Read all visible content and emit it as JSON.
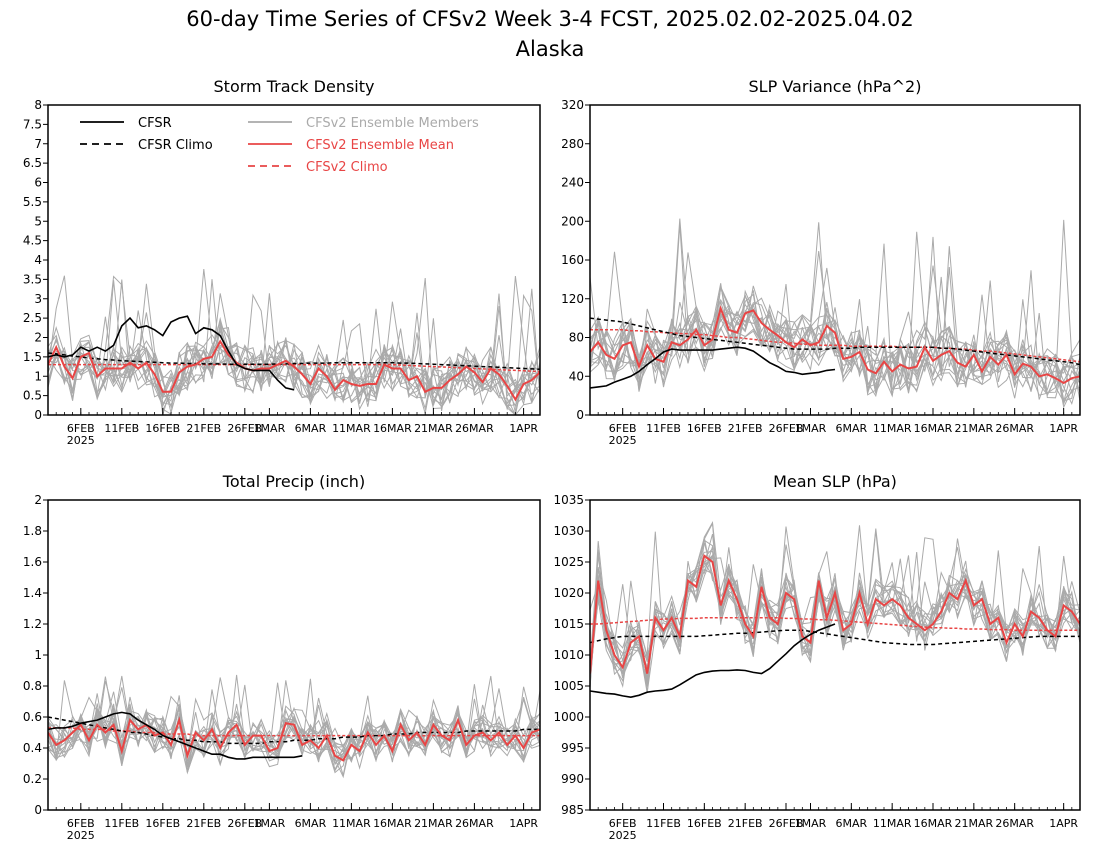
{
  "figure": {
    "title": "60-day Time Series of CFSv2 Week 3-4 FCST, 2025.02.02-2025.04.02",
    "subtitle": "Alaska"
  },
  "legend": {
    "items": [
      {
        "label": "CFSR",
        "color": "#000000",
        "dash": false
      },
      {
        "label": "CFSR Climo",
        "color": "#000000",
        "dash": true
      },
      {
        "label": "CFSv2 Ensemble Members",
        "color": "#aaaaaa",
        "dash": false
      },
      {
        "label": "CFSv2 Ensemble Mean",
        "color": "#e84545",
        "dash": false
      },
      {
        "label": "CFSv2 Climo",
        "color": "#e84545",
        "dash": true
      }
    ]
  },
  "colors": {
    "cfsr": "#000000",
    "members": "#aaaaaa",
    "mean": "#e84545"
  },
  "chart_data": [
    {
      "type": "line",
      "title": "Storm Track Density",
      "ylim": [
        0,
        8
      ],
      "yticks": [
        "0",
        "0.5",
        "1",
        "1.5",
        "2",
        "2.5",
        "3",
        "3.5",
        "4",
        "4.5",
        "5",
        "5.5",
        "6",
        "6.5",
        "7",
        "7.5",
        "8"
      ],
      "xlim": [
        0,
        60
      ],
      "xticks": [
        {
          "x": 4,
          "label": "6FEB",
          "sub": "2025"
        },
        {
          "x": 9,
          "label": "11FEB"
        },
        {
          "x": 14,
          "label": "16FEB"
        },
        {
          "x": 19,
          "label": "21FEB"
        },
        {
          "x": 24,
          "label": "26FEB"
        },
        {
          "x": 27,
          "label": "1MAR"
        },
        {
          "x": 32,
          "label": "6MAR"
        },
        {
          "x": 37,
          "label": "11MAR"
        },
        {
          "x": 42,
          "label": "16MAR"
        },
        {
          "x": 47,
          "label": "21MAR"
        },
        {
          "x": 52,
          "label": "26MAR"
        },
        {
          "x": 58,
          "label": "1APR"
        }
      ],
      "cfsr": [
        1.5,
        1.55,
        1.5,
        1.55,
        1.75,
        1.65,
        1.75,
        1.65,
        1.8,
        2.3,
        2.5,
        2.25,
        2.3,
        2.2,
        2.05,
        2.4,
        2.5,
        2.55,
        2.1,
        2.25,
        2.2,
        2.05,
        1.65,
        1.3,
        1.2,
        1.15,
        1.15,
        1.15,
        0.9,
        0.7,
        0.65
      ],
      "cfsr_climo": [
        1.6,
        1.58,
        1.55,
        1.52,
        1.5,
        1.47,
        1.45,
        1.43,
        1.42,
        1.4,
        1.39,
        1.38,
        1.37,
        1.36,
        1.35,
        1.34,
        1.34,
        1.33,
        1.33,
        1.32,
        1.32,
        1.32,
        1.31,
        1.31,
        1.31,
        1.31,
        1.31,
        1.31,
        1.32,
        1.32,
        1.33,
        1.33,
        1.34,
        1.34,
        1.34,
        1.35,
        1.35,
        1.35,
        1.35,
        1.35,
        1.35,
        1.35,
        1.35,
        1.34,
        1.34,
        1.33,
        1.32,
        1.31,
        1.3,
        1.29,
        1.28,
        1.27,
        1.26,
        1.25,
        1.24,
        1.23,
        1.22,
        1.21,
        1.2,
        1.19,
        1.18
      ],
      "model_climo": [
        1.3,
        1.3,
        1.3,
        1.3,
        1.3,
        1.3,
        1.3,
        1.3,
        1.3,
        1.3,
        1.3,
        1.3,
        1.3,
        1.3,
        1.3,
        1.3,
        1.3,
        1.3,
        1.3,
        1.3,
        1.3,
        1.3,
        1.3,
        1.3,
        1.3,
        1.3,
        1.3,
        1.3,
        1.3,
        1.3,
        1.3,
        1.3,
        1.3,
        1.3,
        1.3,
        1.3,
        1.3,
        1.3,
        1.3,
        1.3,
        1.3,
        1.3,
        1.3,
        1.29,
        1.28,
        1.27,
        1.26,
        1.25,
        1.24,
        1.23,
        1.22,
        1.21,
        1.2,
        1.19,
        1.18,
        1.17,
        1.16,
        1.15,
        1.14,
        1.13,
        1.12
      ],
      "mean": [
        1.3,
        1.75,
        1.25,
        0.95,
        1.5,
        1.6,
        1.0,
        1.2,
        1.2,
        1.2,
        1.35,
        1.2,
        1.35,
        1.05,
        0.6,
        0.6,
        1.1,
        1.25,
        1.3,
        1.45,
        1.5,
        1.9,
        1.55,
        1.35,
        1.2,
        1.15,
        1.2,
        1.2,
        1.3,
        1.4,
        1.25,
        1.05,
        0.8,
        1.2,
        1.0,
        0.65,
        0.9,
        0.8,
        0.75,
        0.8,
        0.8,
        1.3,
        1.2,
        1.2,
        0.9,
        1.0,
        0.6,
        0.7,
        0.7,
        0.9,
        1.05,
        1.25,
        1.1,
        0.85,
        1.2,
        1.05,
        0.75,
        0.4,
        0.8,
        0.9,
        1.1
      ],
      "member_spread": 0.55,
      "member_max": 4.2,
      "n_members": 16,
      "legend": true
    },
    {
      "type": "line",
      "title": "SLP Variance (hPa^2)",
      "ylim": [
        0,
        320
      ],
      "yticks": [
        "0",
        "40",
        "80",
        "120",
        "160",
        "200",
        "240",
        "280",
        "320"
      ],
      "xlim": [
        0,
        60
      ],
      "xticks": [
        {
          "x": 4,
          "label": "6FEB",
          "sub": "2025"
        },
        {
          "x": 9,
          "label": "11FEB"
        },
        {
          "x": 14,
          "label": "16FEB"
        },
        {
          "x": 19,
          "label": "21FEB"
        },
        {
          "x": 24,
          "label": "26FEB"
        },
        {
          "x": 27,
          "label": "1MAR"
        },
        {
          "x": 32,
          "label": "6MAR"
        },
        {
          "x": 37,
          "label": "11MAR"
        },
        {
          "x": 42,
          "label": "16MAR"
        },
        {
          "x": 47,
          "label": "21MAR"
        },
        {
          "x": 52,
          "label": "26MAR"
        },
        {
          "x": 58,
          "label": "1APR"
        }
      ],
      "cfsr": [
        28,
        29,
        30,
        34,
        37,
        40,
        45,
        52,
        58,
        65,
        68,
        67,
        67,
        67,
        67,
        67,
        68,
        69,
        70,
        69,
        66,
        60,
        54,
        50,
        45,
        44,
        42,
        43,
        44,
        46,
        47
      ],
      "cfsr_climo": [
        100,
        99,
        98,
        97,
        96,
        94,
        92,
        90,
        88,
        86,
        84,
        82,
        81,
        80,
        79,
        78,
        77,
        76,
        75,
        74,
        73,
        72,
        71,
        70,
        69,
        68,
        68,
        68,
        68,
        68,
        69,
        69,
        69,
        70,
        70,
        70,
        70,
        70,
        70,
        70,
        70,
        70,
        70,
        69,
        69,
        68,
        67,
        66,
        65,
        64,
        63,
        62,
        61,
        60,
        59,
        58,
        57,
        56,
        55,
        54,
        52
      ],
      "model_climo": [
        88,
        88,
        88,
        88,
        88,
        87,
        87,
        86,
        86,
        85,
        85,
        84,
        84,
        83,
        83,
        82,
        81,
        80,
        80,
        79,
        78,
        77,
        76,
        75,
        75,
        74,
        73,
        73,
        72,
        72,
        72,
        72,
        71,
        71,
        71,
        71,
        71,
        71,
        70,
        70,
        70,
        70,
        70,
        69,
        69,
        68,
        68,
        67,
        66,
        66,
        65,
        64,
        63,
        62,
        61,
        60,
        59,
        58,
        57,
        56,
        55
      ],
      "mean": [
        65,
        75,
        62,
        58,
        72,
        75,
        50,
        72,
        58,
        55,
        75,
        72,
        78,
        88,
        72,
        78,
        110,
        88,
        85,
        105,
        108,
        95,
        88,
        82,
        75,
        70,
        78,
        72,
        75,
        92,
        85,
        58,
        60,
        65,
        47,
        43,
        55,
        45,
        52,
        48,
        50,
        70,
        56,
        62,
        66,
        54,
        50,
        62,
        45,
        60,
        52,
        62,
        42,
        53,
        50,
        40,
        42,
        38,
        33,
        38,
        40
      ],
      "member_spread": 24,
      "member_max": 240,
      "n_members": 16,
      "legend": false
    },
    {
      "type": "line",
      "title": "Total Precip (inch)",
      "ylim": [
        0,
        2
      ],
      "yticks": [
        "0",
        "0.2",
        "0.4",
        "0.6",
        "0.8",
        "1",
        "1.2",
        "1.4",
        "1.6",
        "1.8",
        "2"
      ],
      "xlim": [
        0,
        60
      ],
      "xticks": [
        {
          "x": 4,
          "label": "6FEB",
          "sub": "2025"
        },
        {
          "x": 9,
          "label": "11FEB"
        },
        {
          "x": 14,
          "label": "16FEB"
        },
        {
          "x": 19,
          "label": "21FEB"
        },
        {
          "x": 24,
          "label": "26FEB"
        },
        {
          "x": 27,
          "label": "1MAR"
        },
        {
          "x": 32,
          "label": "6MAR"
        },
        {
          "x": 37,
          "label": "11MAR"
        },
        {
          "x": 42,
          "label": "16MAR"
        },
        {
          "x": 47,
          "label": "21MAR"
        },
        {
          "x": 52,
          "label": "26MAR"
        },
        {
          "x": 58,
          "label": "1APR"
        }
      ],
      "cfsr": [
        0.52,
        0.53,
        0.53,
        0.54,
        0.56,
        0.57,
        0.58,
        0.6,
        0.62,
        0.63,
        0.62,
        0.58,
        0.55,
        0.52,
        0.48,
        0.46,
        0.44,
        0.42,
        0.4,
        0.38,
        0.36,
        0.36,
        0.34,
        0.33,
        0.33,
        0.34,
        0.34,
        0.34,
        0.34,
        0.34,
        0.34,
        0.35
      ],
      "cfsr_climo": [
        0.6,
        0.59,
        0.58,
        0.57,
        0.56,
        0.55,
        0.54,
        0.53,
        0.52,
        0.51,
        0.5,
        0.5,
        0.49,
        0.48,
        0.47,
        0.46,
        0.46,
        0.45,
        0.45,
        0.44,
        0.44,
        0.44,
        0.43,
        0.43,
        0.43,
        0.43,
        0.43,
        0.44,
        0.44,
        0.44,
        0.45,
        0.45,
        0.45,
        0.46,
        0.46,
        0.46,
        0.47,
        0.47,
        0.47,
        0.48,
        0.48,
        0.48,
        0.49,
        0.49,
        0.49,
        0.5,
        0.5,
        0.5,
        0.5,
        0.5,
        0.5,
        0.51,
        0.51,
        0.51,
        0.51,
        0.51,
        0.51,
        0.51,
        0.52,
        0.52,
        0.52
      ],
      "model_climo": [
        0.53,
        0.53,
        0.53,
        0.53,
        0.52,
        0.52,
        0.52,
        0.52,
        0.51,
        0.51,
        0.51,
        0.5,
        0.5,
        0.5,
        0.49,
        0.49,
        0.49,
        0.49,
        0.48,
        0.48,
        0.48,
        0.48,
        0.48,
        0.48,
        0.48,
        0.48,
        0.48,
        0.48,
        0.48,
        0.48,
        0.48,
        0.48,
        0.48,
        0.48,
        0.48,
        0.48,
        0.48,
        0.48,
        0.48,
        0.48,
        0.48,
        0.48,
        0.48,
        0.48,
        0.48,
        0.48,
        0.48,
        0.48,
        0.48,
        0.48,
        0.48,
        0.48,
        0.48,
        0.48,
        0.48,
        0.48,
        0.48,
        0.48,
        0.48,
        0.48,
        0.48
      ],
      "mean": [
        0.5,
        0.42,
        0.45,
        0.5,
        0.55,
        0.45,
        0.55,
        0.5,
        0.55,
        0.38,
        0.58,
        0.52,
        0.55,
        0.48,
        0.5,
        0.42,
        0.58,
        0.35,
        0.5,
        0.45,
        0.52,
        0.4,
        0.5,
        0.55,
        0.42,
        0.48,
        0.48,
        0.38,
        0.4,
        0.56,
        0.55,
        0.42,
        0.45,
        0.4,
        0.48,
        0.35,
        0.32,
        0.42,
        0.38,
        0.5,
        0.42,
        0.48,
        0.38,
        0.55,
        0.45,
        0.5,
        0.42,
        0.55,
        0.48,
        0.45,
        0.58,
        0.42,
        0.48,
        0.5,
        0.45,
        0.5,
        0.42,
        0.48,
        0.4,
        0.5,
        0.52
      ],
      "member_spread": 0.1,
      "member_max": 0.95,
      "n_members": 16,
      "legend": false
    },
    {
      "type": "line",
      "title": "Mean SLP (hPa)",
      "ylim": [
        985,
        1035
      ],
      "yticks": [
        "985",
        "990",
        "995",
        "1000",
        "1005",
        "1010",
        "1015",
        "1020",
        "1025",
        "1030",
        "1035"
      ],
      "xlim": [
        0,
        60
      ],
      "xticks": [
        {
          "x": 4,
          "label": "6FEB",
          "sub": "2025"
        },
        {
          "x": 9,
          "label": "11FEB"
        },
        {
          "x": 14,
          "label": "16FEB"
        },
        {
          "x": 19,
          "label": "21FEB"
        },
        {
          "x": 24,
          "label": "26FEB"
        },
        {
          "x": 27,
          "label": "1MAR"
        },
        {
          "x": 32,
          "label": "6MAR"
        },
        {
          "x": 37,
          "label": "11MAR"
        },
        {
          "x": 42,
          "label": "16MAR"
        },
        {
          "x": 47,
          "label": "21MAR"
        },
        {
          "x": 52,
          "label": "26MAR"
        },
        {
          "x": 58,
          "label": "1APR"
        }
      ],
      "cfsr": [
        1004.2,
        1004,
        1003.8,
        1003.7,
        1003.4,
        1003.2,
        1003.5,
        1004,
        1004.2,
        1004.3,
        1004.5,
        1005.2,
        1006,
        1006.8,
        1007.2,
        1007.4,
        1007.5,
        1007.5,
        1007.6,
        1007.5,
        1007.2,
        1007,
        1007.8,
        1009,
        1010.2,
        1011.5,
        1012.5,
        1013.3,
        1014,
        1014.5,
        1015
      ],
      "cfsr_climo": [
        1012,
        1012.3,
        1012.6,
        1012.8,
        1013,
        1013,
        1013,
        1013,
        1013,
        1013,
        1013,
        1013,
        1013,
        1013,
        1013.1,
        1013.2,
        1013.3,
        1013.4,
        1013.5,
        1013.5,
        1013.6,
        1013.7,
        1013.8,
        1013.9,
        1014,
        1014,
        1014,
        1013.8,
        1013.6,
        1013.4,
        1013.2,
        1013,
        1012.8,
        1012.6,
        1012.4,
        1012.2,
        1012,
        1011.9,
        1011.8,
        1011.7,
        1011.7,
        1011.7,
        1011.7,
        1011.8,
        1011.9,
        1012,
        1012.1,
        1012.2,
        1012.3,
        1012.4,
        1012.5,
        1012.6,
        1012.7,
        1012.8,
        1012.9,
        1013,
        1013,
        1013,
        1013,
        1013,
        1013
      ],
      "model_climo": [
        1015,
        1015,
        1015.1,
        1015.2,
        1015.3,
        1015.4,
        1015.5,
        1015.6,
        1015.7,
        1015.8,
        1015.8,
        1015.9,
        1015.9,
        1015.9,
        1016,
        1016,
        1016,
        1016,
        1016,
        1016,
        1016,
        1016,
        1016,
        1016,
        1015.9,
        1015.9,
        1015.8,
        1015.8,
        1015.7,
        1015.7,
        1015.6,
        1015.5,
        1015.4,
        1015.3,
        1015.2,
        1015.1,
        1015,
        1014.9,
        1014.8,
        1014.7,
        1014.6,
        1014.5,
        1014.4,
        1014.4,
        1014.3,
        1014.3,
        1014.2,
        1014.2,
        1014.2,
        1014.1,
        1014.1,
        1014.1,
        1014,
        1014,
        1014,
        1014,
        1014,
        1014,
        1014,
        1014,
        1014
      ],
      "mean": [
        1007,
        1022,
        1014,
        1010,
        1008,
        1012,
        1013,
        1007,
        1016,
        1014,
        1016,
        1013,
        1022,
        1021,
        1026,
        1025,
        1018,
        1022,
        1019,
        1015,
        1013,
        1021,
        1016,
        1015,
        1020,
        1019,
        1013,
        1012,
        1022,
        1016,
        1020,
        1014,
        1015,
        1020,
        1015,
        1019,
        1018,
        1019,
        1018,
        1016,
        1015,
        1014,
        1015,
        1017,
        1020,
        1019,
        1022,
        1018,
        1019,
        1015,
        1016,
        1012,
        1015,
        1013,
        1017,
        1016,
        1014,
        1013,
        1018,
        1017,
        1015
      ],
      "member_spread": 3,
      "member_max": 1033,
      "n_members": 16,
      "legend": false
    }
  ]
}
